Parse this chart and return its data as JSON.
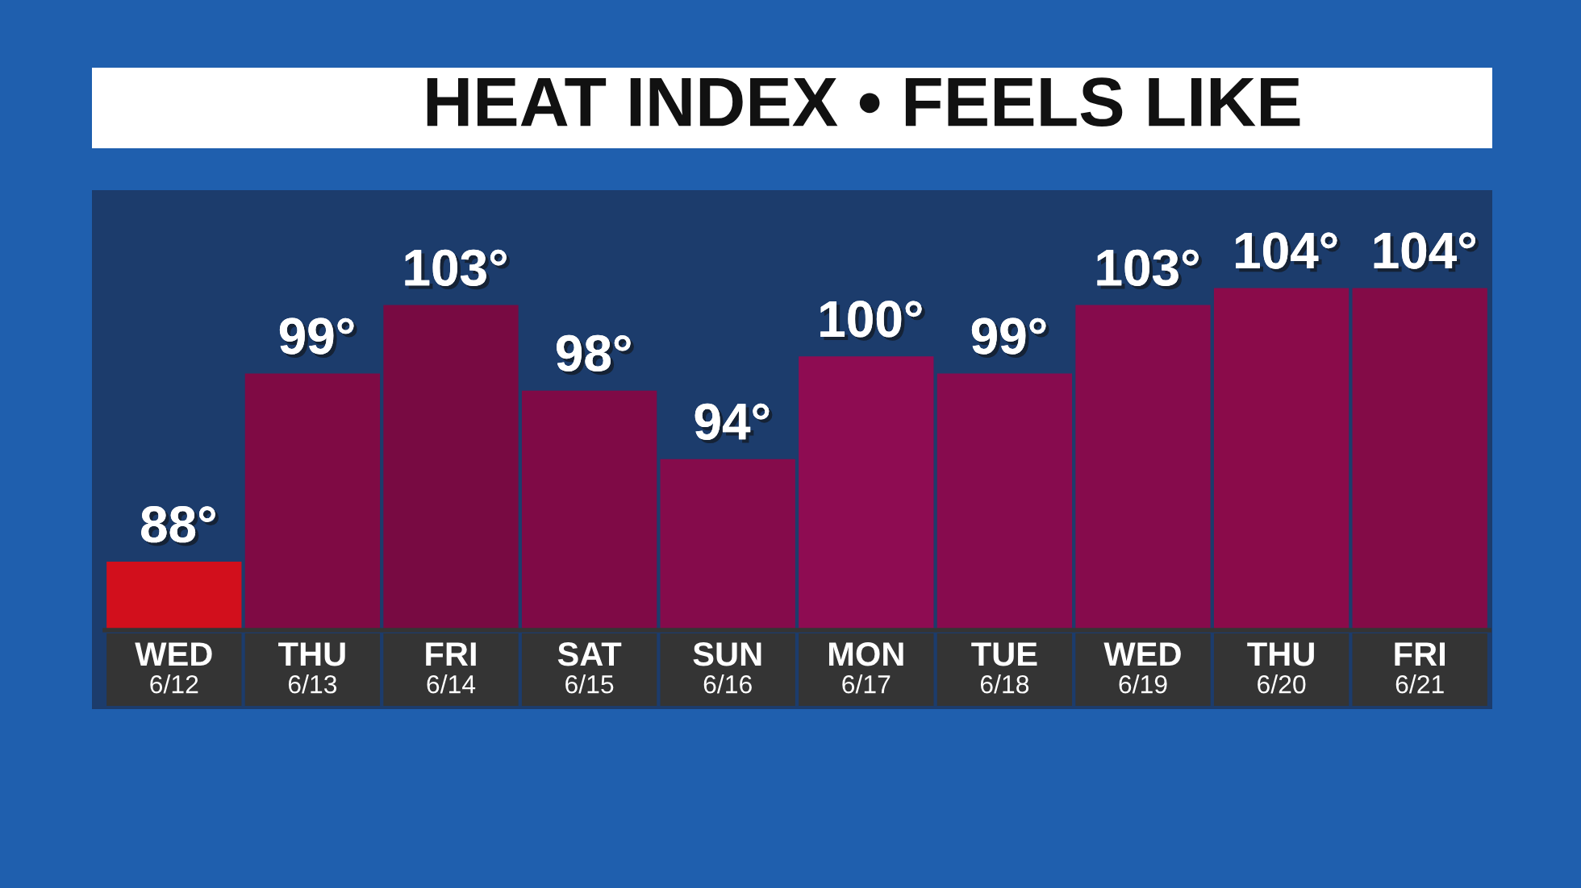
{
  "chart_data": {
    "type": "bar",
    "title": "HEAT INDEX • FEELS LIKE",
    "categories": [
      "WED\n6/12",
      "THU\n6/13",
      "FRI\n6/14",
      "SAT\n6/15",
      "SUN\n6/16",
      "MON\n6/17",
      "TUE\n6/18",
      "WED\n6/19",
      "THU\n6/20",
      "FRI\n6/21"
    ],
    "values": [
      88,
      99,
      103,
      98,
      94,
      100,
      99,
      103,
      104,
      104
    ],
    "value_labels": [
      "88°",
      "99°",
      "103°",
      "98°",
      "94°",
      "100°",
      "99°",
      "103°",
      "104°",
      "104°"
    ],
    "colors": [
      "#d20f1c",
      "#7f0a44",
      "#780a42",
      "#7f0a46",
      "#850b4b",
      "#8e0c52",
      "#870b4e",
      "#860b4c",
      "#8a0b4a",
      "#830b47"
    ],
    "ylim": [
      84,
      110
    ],
    "tick_labels": "x"
  }
}
